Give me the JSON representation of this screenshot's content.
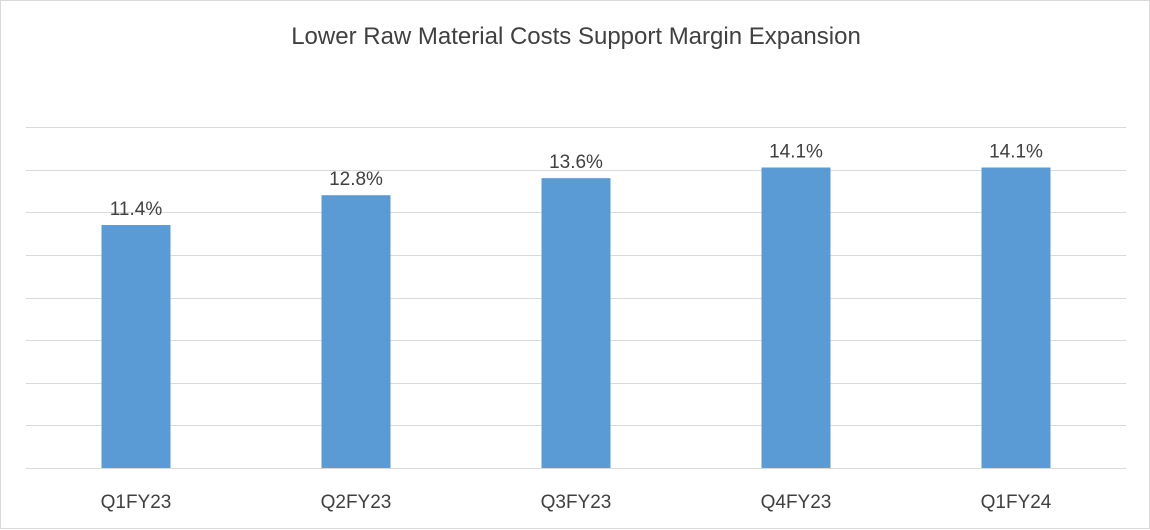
{
  "chart_data": {
    "type": "bar",
    "title": "Lower Raw Material Costs Support Margin Expansion",
    "categories": [
      "Q1FY23",
      "Q2FY23",
      "Q3FY23",
      "Q4FY23",
      "Q1FY24"
    ],
    "values": [
      11.4,
      12.8,
      13.6,
      14.1,
      14.1
    ],
    "data_labels": [
      "11.4%",
      "12.8%",
      "13.6%",
      "14.1%",
      "14.1%"
    ],
    "xlabel": "",
    "ylabel": "",
    "ylim": [
      0,
      16
    ],
    "grid_step": 2,
    "grid": true,
    "legend": "none",
    "bar_color": "#5b9bd5",
    "grid_color": "#d9d9d9"
  }
}
